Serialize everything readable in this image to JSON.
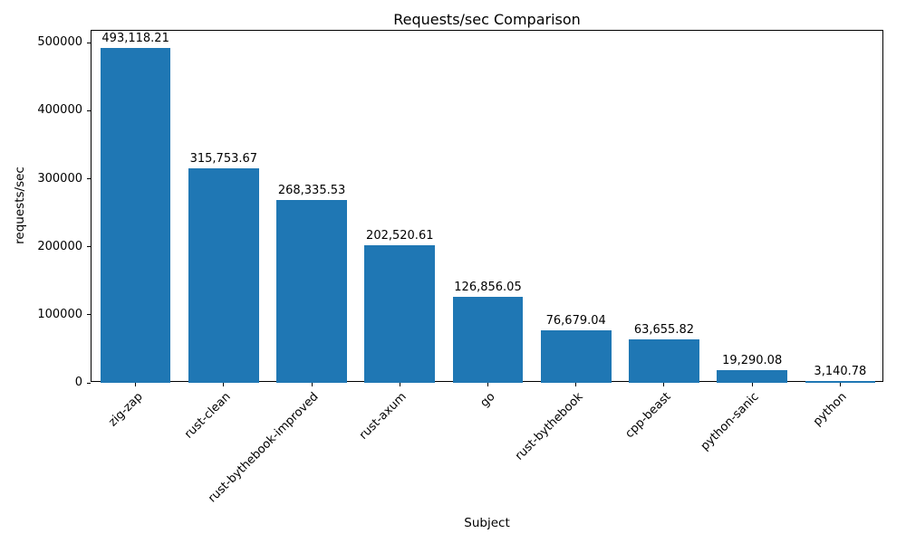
{
  "chart_data": {
    "type": "bar",
    "title": "Requests/sec Comparison",
    "xlabel": "Subject",
    "ylabel": "requests/sec",
    "categories": [
      "zig-zap",
      "rust-clean",
      "rust-bythebook-improved",
      "rust-axum",
      "go",
      "rust-bythebook",
      "cpp-beast",
      "python-sanic",
      "python"
    ],
    "values": [
      493118.21,
      315753.67,
      268335.53,
      202520.61,
      126856.05,
      76679.04,
      63655.82,
      19290.08,
      3140.78
    ],
    "value_labels": [
      "493,118.21",
      "315,753.67",
      "268,335.53",
      "202,520.61",
      "126,856.05",
      "76,679.04",
      "63,655.82",
      "19,290.08",
      "3,140.78"
    ],
    "bar_color": "#1f77b4",
    "ylim": [
      0,
      517774
    ],
    "yticks": [
      0,
      100000,
      200000,
      300000,
      400000,
      500000
    ],
    "ytick_labels": [
      "0",
      "100000",
      "200000",
      "300000",
      "400000",
      "500000"
    ],
    "grid": false,
    "legend_position": "none",
    "bar_width_fraction": 0.8
  }
}
